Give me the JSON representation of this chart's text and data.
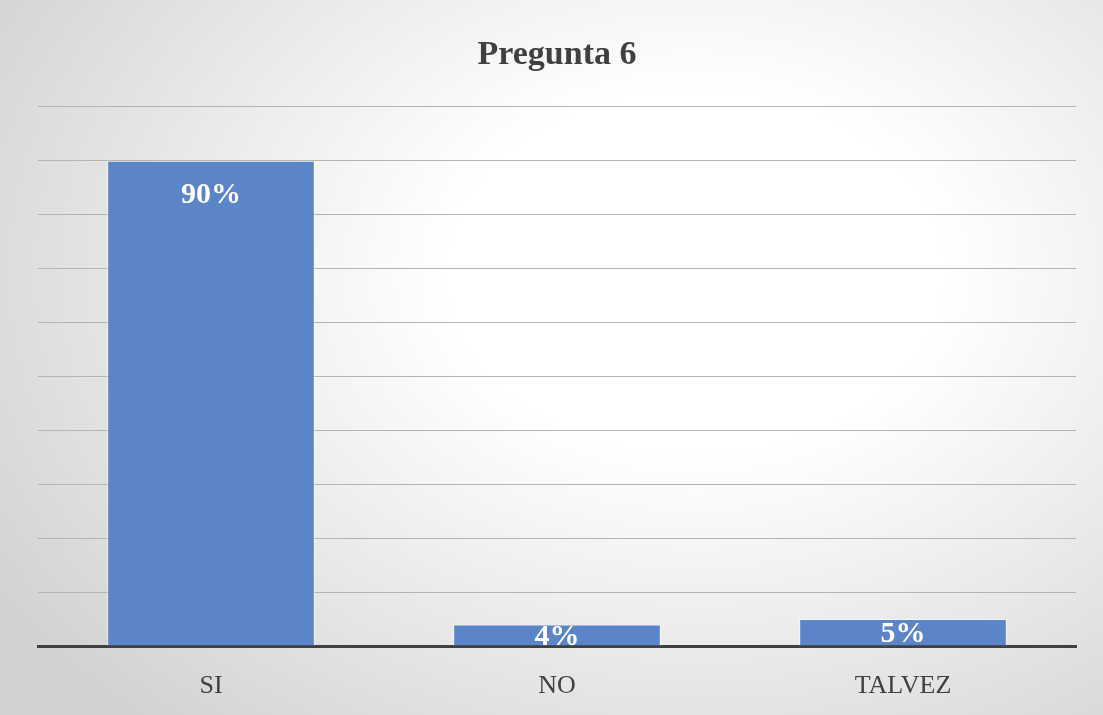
{
  "chart_data": {
    "type": "bar",
    "title": "Pregunta 6",
    "categories": [
      "SI",
      "NO",
      "TALVEZ"
    ],
    "values": [
      90,
      4,
      5
    ],
    "value_labels": [
      "90%",
      "4%",
      "5%"
    ],
    "color": "#5b84c9",
    "ylim": [
      0,
      100
    ],
    "yticks": [
      {
        "value": 0,
        "label": null
      },
      {
        "value": 10,
        "label": null
      },
      {
        "value": 20,
        "label": null
      },
      {
        "value": 30,
        "label": null
      },
      {
        "value": 40,
        "label": null
      },
      {
        "value": 50,
        "label": null
      },
      {
        "value": 60,
        "label": null
      },
      {
        "value": 70,
        "label": null
      },
      {
        "value": 80,
        "label": null
      },
      {
        "value": 90,
        "label": null
      },
      {
        "value": 100,
        "label": null
      }
    ],
    "grid": "y",
    "tick_labels": "x"
  }
}
